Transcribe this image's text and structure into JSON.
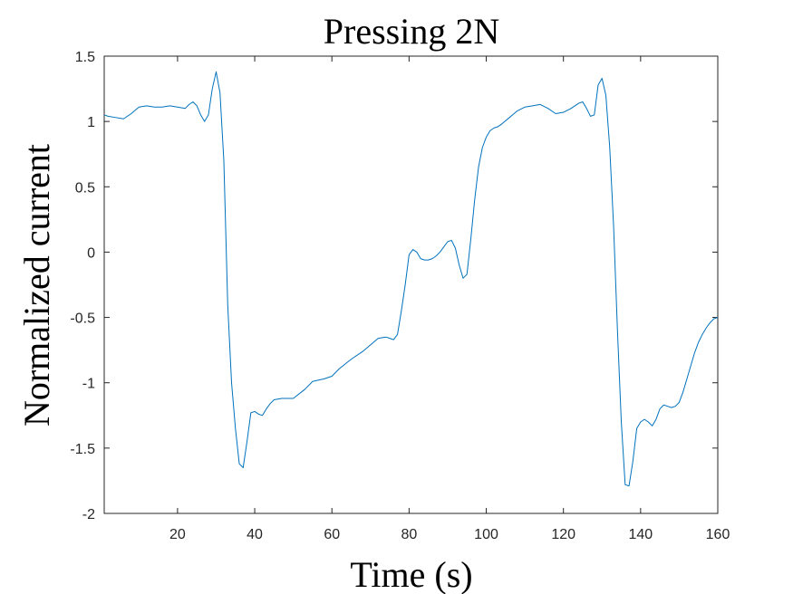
{
  "chart_data": {
    "type": "line",
    "title": "Pressing 2N",
    "xlabel": "Time (s)",
    "ylabel": "Normalized current",
    "xlim": [
      1,
      160
    ],
    "ylim": [
      -2,
      1.5
    ],
    "xticks": [
      20,
      40,
      60,
      80,
      100,
      120,
      140,
      160
    ],
    "xtick_labels": [
      "20",
      "40",
      "60",
      "80",
      "100",
      "120",
      "140",
      "160"
    ],
    "yticks": [
      -2,
      -1.5,
      -1,
      -0.5,
      0,
      0.5,
      1,
      1.5
    ],
    "ytick_labels": [
      "-2",
      "-1.5",
      "-1",
      "-0.5",
      "0",
      "0.5",
      "1",
      "1.5"
    ],
    "grid": false,
    "line_color": "#0072BD",
    "series": [
      {
        "x": [
          1,
          2,
          4,
          6,
          8,
          10,
          12,
          14,
          16,
          18,
          20,
          22,
          23,
          24,
          25,
          26,
          27,
          28,
          29,
          30,
          31,
          32,
          33,
          34,
          35,
          36,
          37,
          38,
          39,
          40,
          41,
          42,
          43,
          44,
          45,
          47,
          50,
          53,
          55,
          58,
          60,
          62,
          65,
          68,
          70,
          72,
          74,
          75,
          76,
          77,
          78,
          79,
          80,
          81,
          82,
          83,
          84,
          85,
          86,
          87,
          88,
          89,
          90,
          91,
          92,
          93,
          94,
          95,
          96,
          97,
          98,
          99,
          100,
          101,
          102,
          103,
          104,
          106,
          108,
          110,
          112,
          114,
          116,
          118,
          120,
          122,
          124,
          125,
          126,
          127,
          128,
          129,
          130,
          131,
          132,
          133,
          134,
          135,
          136,
          137,
          138,
          139,
          140,
          141,
          142,
          143,
          144,
          145,
          146,
          147,
          148,
          149,
          150,
          151,
          152,
          153,
          154,
          155,
          156,
          157,
          158,
          159,
          160
        ],
        "values": [
          1.05,
          1.04,
          1.03,
          1.02,
          1.06,
          1.11,
          1.12,
          1.11,
          1.11,
          1.12,
          1.11,
          1.1,
          1.13,
          1.15,
          1.12,
          1.05,
          1.0,
          1.05,
          1.25,
          1.38,
          1.22,
          0.7,
          -0.4,
          -1.0,
          -1.35,
          -1.62,
          -1.65,
          -1.45,
          -1.23,
          -1.22,
          -1.24,
          -1.25,
          -1.2,
          -1.16,
          -1.13,
          -1.12,
          -1.12,
          -1.05,
          -0.99,
          -0.97,
          -0.95,
          -0.89,
          -0.82,
          -0.76,
          -0.71,
          -0.66,
          -0.65,
          -0.66,
          -0.67,
          -0.63,
          -0.45,
          -0.25,
          -0.02,
          0.02,
          0.0,
          -0.05,
          -0.06,
          -0.06,
          -0.05,
          -0.03,
          0.0,
          0.04,
          0.08,
          0.09,
          0.03,
          -0.1,
          -0.2,
          -0.17,
          0.1,
          0.4,
          0.65,
          0.8,
          0.88,
          0.93,
          0.95,
          0.96,
          0.98,
          1.03,
          1.08,
          1.11,
          1.12,
          1.13,
          1.1,
          1.06,
          1.07,
          1.1,
          1.14,
          1.15,
          1.1,
          1.04,
          1.05,
          1.28,
          1.33,
          1.2,
          0.8,
          0.2,
          -0.6,
          -1.3,
          -1.78,
          -1.79,
          -1.6,
          -1.35,
          -1.3,
          -1.28,
          -1.3,
          -1.33,
          -1.28,
          -1.2,
          -1.17,
          -1.18,
          -1.19,
          -1.18,
          -1.15,
          -1.07,
          -0.97,
          -0.87,
          -0.77,
          -0.69,
          -0.63,
          -0.58,
          -0.54,
          -0.51,
          -0.5
        ]
      }
    ]
  }
}
